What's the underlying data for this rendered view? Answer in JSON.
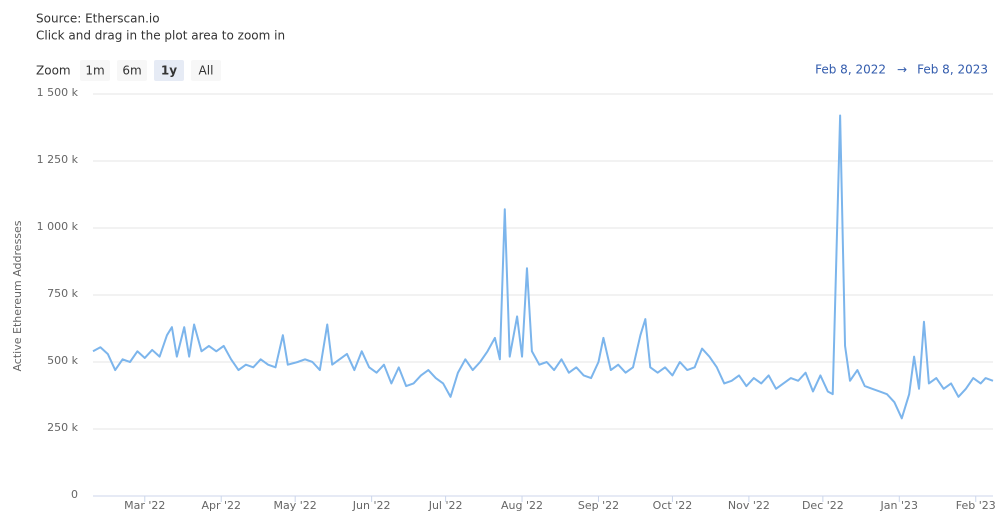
{
  "chart_data": {
    "type": "line",
    "source": "Source: Etherscan.io",
    "subtitle": "Click and drag in the plot area to zoom in",
    "zoom": {
      "label": "Zoom",
      "buttons": [
        "1m",
        "6m",
        "1y",
        "All"
      ],
      "selected": 2
    },
    "range": {
      "from": "Feb 8, 2022",
      "separator": "→",
      "to": "Feb 8, 2023"
    },
    "y_label": "Active Ethereum Addresses",
    "xlim": [
      "2022-02-08",
      "2023-02-08"
    ],
    "xticks": [
      {
        "value": "2022-03-01",
        "label": "Mar '22"
      },
      {
        "value": "2022-04-01",
        "label": "Apr '22"
      },
      {
        "value": "2022-05-01",
        "label": "May '22"
      },
      {
        "value": "2022-06-01",
        "label": "Jun '22"
      },
      {
        "value": "2022-07-01",
        "label": "Jul '22"
      },
      {
        "value": "2022-08-01",
        "label": "Aug '22"
      },
      {
        "value": "2022-09-01",
        "label": "Sep '22"
      },
      {
        "value": "2022-10-01",
        "label": "Oct '22"
      },
      {
        "value": "2022-11-01",
        "label": "Nov '22"
      },
      {
        "value": "2022-12-01",
        "label": "Dec '22"
      },
      {
        "value": "2023-01-01",
        "label": "Jan '23"
      },
      {
        "value": "2023-02-01",
        "label": "Feb '23"
      }
    ],
    "ylim": [
      0,
      1500000
    ],
    "yticks": [
      0,
      {
        "value": 250000,
        "label": "250 k"
      },
      {
        "value": 500000,
        "label": "500 k"
      },
      {
        "value": 750000,
        "label": "750 k"
      },
      {
        "value": 1000000,
        "label": "1 000 k"
      },
      {
        "value": 1250000,
        "label": "1 250 k"
      },
      {
        "value": 1500000,
        "label": "1 500 k"
      }
    ],
    "grid": true,
    "series": [
      {
        "name": "Active Ethereum Addresses",
        "color": "#7cb5ec",
        "x": [
          "2022-02-08",
          "2022-02-11",
          "2022-02-14",
          "2022-02-17",
          "2022-02-20",
          "2022-02-23",
          "2022-02-26",
          "2022-03-01",
          "2022-03-04",
          "2022-03-07",
          "2022-03-10",
          "2022-03-12",
          "2022-03-14",
          "2022-03-17",
          "2022-03-19",
          "2022-03-21",
          "2022-03-24",
          "2022-03-27",
          "2022-03-30",
          "2022-04-02",
          "2022-04-05",
          "2022-04-08",
          "2022-04-11",
          "2022-04-14",
          "2022-04-17",
          "2022-04-20",
          "2022-04-23",
          "2022-04-26",
          "2022-04-28",
          "2022-05-02",
          "2022-05-05",
          "2022-05-08",
          "2022-05-11",
          "2022-05-14",
          "2022-05-16",
          "2022-05-19",
          "2022-05-22",
          "2022-05-25",
          "2022-05-28",
          "2022-05-31",
          "2022-06-03",
          "2022-06-06",
          "2022-06-09",
          "2022-06-12",
          "2022-06-15",
          "2022-06-18",
          "2022-06-21",
          "2022-06-24",
          "2022-06-27",
          "2022-06-30",
          "2022-07-03",
          "2022-07-06",
          "2022-07-09",
          "2022-07-12",
          "2022-07-15",
          "2022-07-18",
          "2022-07-21",
          "2022-07-23",
          "2022-07-25",
          "2022-07-27",
          "2022-07-30",
          "2022-08-01",
          "2022-08-03",
          "2022-08-05",
          "2022-08-08",
          "2022-08-11",
          "2022-08-14",
          "2022-08-17",
          "2022-08-20",
          "2022-08-23",
          "2022-08-26",
          "2022-08-29",
          "2022-09-01",
          "2022-09-03",
          "2022-09-06",
          "2022-09-09",
          "2022-09-12",
          "2022-09-15",
          "2022-09-18",
          "2022-09-20",
          "2022-09-22",
          "2022-09-25",
          "2022-09-28",
          "2022-10-01",
          "2022-10-04",
          "2022-10-07",
          "2022-10-10",
          "2022-10-13",
          "2022-10-16",
          "2022-10-19",
          "2022-10-22",
          "2022-10-25",
          "2022-10-28",
          "2022-10-31",
          "2022-11-03",
          "2022-11-06",
          "2022-11-09",
          "2022-11-12",
          "2022-11-15",
          "2022-11-18",
          "2022-11-21",
          "2022-11-24",
          "2022-11-27",
          "2022-11-30",
          "2022-12-03",
          "2022-12-05",
          "2022-12-08",
          "2022-12-10",
          "2022-12-12",
          "2022-12-15",
          "2022-12-18",
          "2022-12-21",
          "2022-12-24",
          "2022-12-27",
          "2022-12-30",
          "2023-01-02",
          "2023-01-05",
          "2023-01-07",
          "2023-01-09",
          "2023-01-11",
          "2023-01-13",
          "2023-01-16",
          "2023-01-19",
          "2023-01-22",
          "2023-01-25",
          "2023-01-28",
          "2023-01-31",
          "2023-02-03",
          "2023-02-05",
          "2023-02-08"
        ],
        "values": [
          540000,
          555000,
          530000,
          470000,
          510000,
          500000,
          540000,
          515000,
          545000,
          520000,
          600000,
          630000,
          520000,
          630000,
          520000,
          640000,
          540000,
          560000,
          540000,
          560000,
          510000,
          470000,
          490000,
          480000,
          510000,
          490000,
          480000,
          600000,
          490000,
          500000,
          510000,
          500000,
          470000,
          640000,
          490000,
          510000,
          530000,
          470000,
          540000,
          480000,
          460000,
          490000,
          420000,
          480000,
          410000,
          420000,
          450000,
          470000,
          440000,
          420000,
          370000,
          460000,
          510000,
          470000,
          500000,
          540000,
          590000,
          510000,
          1070000,
          520000,
          670000,
          520000,
          850000,
          540000,
          490000,
          500000,
          470000,
          510000,
          460000,
          480000,
          450000,
          440000,
          500000,
          590000,
          470000,
          490000,
          460000,
          480000,
          600000,
          660000,
          480000,
          460000,
          480000,
          450000,
          500000,
          470000,
          480000,
          550000,
          520000,
          480000,
          420000,
          430000,
          450000,
          410000,
          440000,
          420000,
          450000,
          400000,
          420000,
          440000,
          430000,
          460000,
          390000,
          450000,
          390000,
          380000,
          1420000,
          560000,
          430000,
          470000,
          410000,
          400000,
          390000,
          380000,
          350000,
          290000,
          380000,
          520000,
          400000,
          650000,
          420000,
          440000,
          400000,
          420000,
          370000,
          400000,
          440000,
          420000,
          440000,
          430000
        ]
      }
    ]
  }
}
